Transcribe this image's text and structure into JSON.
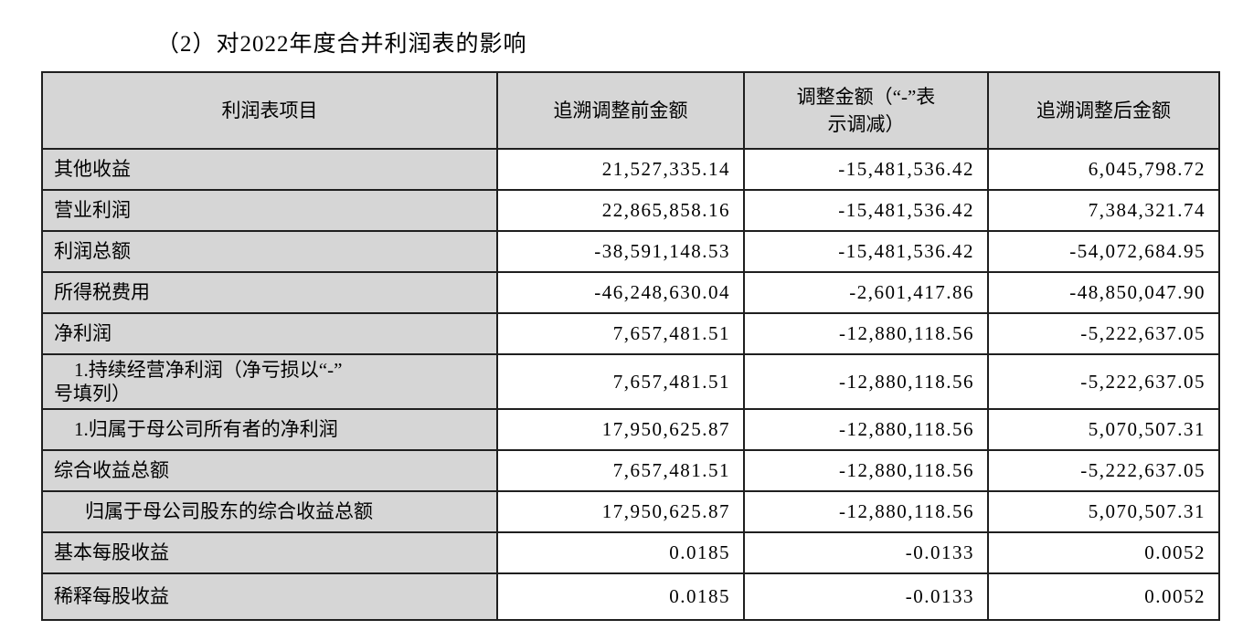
{
  "title": "（2）对2022年度合并利润表的影响",
  "table": {
    "headers": {
      "item": "利润表项目",
      "before": "追溯调整前金额",
      "adjustment": "调整金额（“-”表\n示调减）",
      "after": "追溯调整后金额"
    },
    "rows": [
      {
        "label": "其他收益",
        "before": "21,527,335.14",
        "adjustment": "-15,481,536.42",
        "after": "6,045,798.72"
      },
      {
        "label": "营业利润",
        "before": "22,865,858.16",
        "adjustment": "-15,481,536.42",
        "after": "7,384,321.74"
      },
      {
        "label": "利润总额",
        "before": "-38,591,148.53",
        "adjustment": "-15,481,536.42",
        "after": "-54,072,684.95"
      },
      {
        "label": "所得税费用",
        "before": "-46,248,630.04",
        "adjustment": "-2,601,417.86",
        "after": "-48,850,047.90"
      },
      {
        "label": "净利润",
        "before": "7,657,481.51",
        "adjustment": "-12,880,118.56",
        "after": "-5,222,637.05"
      },
      {
        "label": "1.持续经营净利润（净亏损以“-”\n号填列）",
        "before": "7,657,481.51",
        "adjustment": "-12,880,118.56",
        "after": "-5,222,637.05"
      },
      {
        "label": "1.归属于母公司所有者的净利润",
        "before": "17,950,625.87",
        "adjustment": "-12,880,118.56",
        "after": "5,070,507.31"
      },
      {
        "label": "综合收益总额",
        "before": "7,657,481.51",
        "adjustment": "-12,880,118.56",
        "after": "-5,222,637.05"
      },
      {
        "label": "归属于母公司股东的综合收益总额",
        "before": "17,950,625.87",
        "adjustment": "-12,880,118.56",
        "after": "5,070,507.31"
      },
      {
        "label": "基本每股收益",
        "before": "0.0185",
        "adjustment": "-0.0133",
        "after": "0.0052"
      },
      {
        "label": "稀释每股收益",
        "before": "0.0185",
        "adjustment": "-0.0133",
        "after": "0.0052"
      }
    ]
  }
}
